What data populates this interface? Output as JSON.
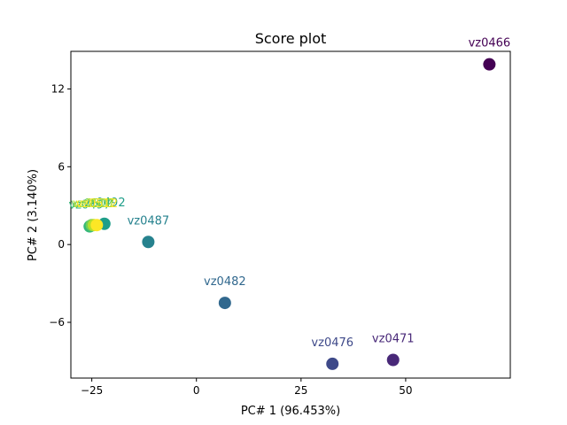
{
  "chart_data": {
    "type": "scatter",
    "title": "Score plot",
    "xlabel": "PC# 1 (96.453%)",
    "ylabel": "PC# 2 (3.140%)",
    "xlim": [
      -30,
      75
    ],
    "ylim": [
      -10.3,
      14.9
    ],
    "xticks": [
      -25,
      0,
      25,
      50
    ],
    "yticks": [
      -6,
      0,
      6,
      12
    ],
    "xtick_labels": [
      "−25",
      "0",
      "25",
      "50"
    ],
    "ytick_labels": [
      "−6",
      "0",
      "6",
      "12"
    ],
    "grid": false,
    "legend": "none",
    "colormap": "viridis",
    "points": [
      {
        "label": "vz0466",
        "x": 70.0,
        "y": 13.9,
        "color": "#440154"
      },
      {
        "label": "vz0471",
        "x": 47.0,
        "y": -8.9,
        "color": "#482878"
      },
      {
        "label": "vz0476",
        "x": 32.5,
        "y": -9.2,
        "color": "#3e4989"
      },
      {
        "label": "vz0482",
        "x": 6.8,
        "y": -4.5,
        "color": "#31688e"
      },
      {
        "label": "vz0487",
        "x": -11.5,
        "y": 0.2,
        "color": "#26828e"
      },
      {
        "label": "vz0492",
        "x": -22.0,
        "y": 1.6,
        "color": "#1f9e89"
      },
      {
        "label": "vz0497",
        "x": -25.5,
        "y": 1.4,
        "color": "#35b779"
      },
      {
        "label": "vz0502",
        "x": -25.0,
        "y": 1.5,
        "color": "#6ece58"
      },
      {
        "label": "vz0507",
        "x": -24.5,
        "y": 1.5,
        "color": "#b5de2b"
      },
      {
        "label": "vz0512",
        "x": -23.8,
        "y": 1.5,
        "color": "#fde725"
      }
    ]
  }
}
